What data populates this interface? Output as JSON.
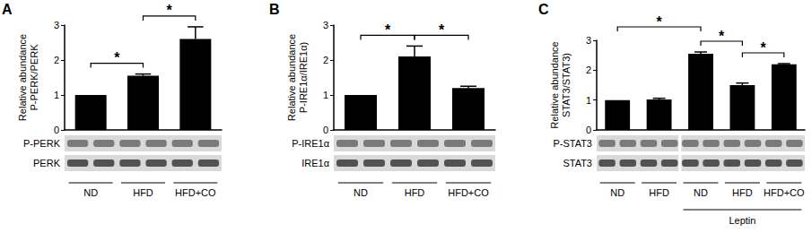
{
  "chart_data": [
    {
      "type": "bar",
      "panel": "A",
      "ylabel": "Relative abundance\nP-PERK/PERK",
      "categories": [
        "ND",
        "HFD",
        "HFD+CO"
      ],
      "values": [
        1,
        1.55,
        2.6
      ],
      "errors": [
        0,
        0.05,
        0.35
      ],
      "color": "#000000",
      "ylim": [
        0,
        3
      ],
      "yticks": [
        0,
        1,
        2,
        3
      ],
      "grid": false,
      "tick_labels": "y",
      "significance": [
        {
          "from": 0,
          "to": 1,
          "label": "*"
        },
        {
          "from": 1,
          "to": 2,
          "label": "*"
        }
      ],
      "blot_labels": [
        "P-PERK",
        "PERK"
      ]
    },
    {
      "type": "bar",
      "panel": "B",
      "ylabel": "Relative abundance\nP-IRE1α/IRE1α)",
      "categories": [
        "ND",
        "HFD",
        "HFD+CO"
      ],
      "values": [
        1,
        2.1,
        1.2
      ],
      "errors": [
        0,
        0.3,
        0.05
      ],
      "color": "#000000",
      "ylim": [
        0,
        3
      ],
      "yticks": [
        0,
        1,
        2,
        3
      ],
      "grid": false,
      "tick_labels": "y",
      "significance": [
        {
          "from": 0,
          "to": 1,
          "label": "*"
        },
        {
          "from": 1,
          "to": 2,
          "label": "*"
        }
      ],
      "blot_labels": [
        "P-IRE1α",
        "IRE1α"
      ]
    },
    {
      "type": "bar",
      "panel": "C",
      "ylabel": "Relative abundance\nSTAT3/STAT3)",
      "categories": [
        "ND",
        "HFD",
        "ND",
        "HFD",
        "HFD+CO"
      ],
      "values": [
        1,
        1.02,
        2.55,
        1.5,
        2.2
      ],
      "errors": [
        0,
        0.04,
        0.06,
        0.07,
        0.02
      ],
      "color": "#000000",
      "ylim": [
        0,
        3
      ],
      "yticks": [
        0,
        1,
        2,
        3
      ],
      "grid": false,
      "tick_labels": "y",
      "significance": [
        {
          "from": 0,
          "to": 2,
          "label": "*"
        },
        {
          "from": 2,
          "to": 3,
          "label": "*"
        },
        {
          "from": 3,
          "to": 4,
          "label": "*"
        }
      ],
      "blot_labels": [
        "P-STAT3",
        "STAT3"
      ],
      "treatment": {
        "label": "Leptin",
        "from": 2,
        "to": 4
      }
    }
  ]
}
